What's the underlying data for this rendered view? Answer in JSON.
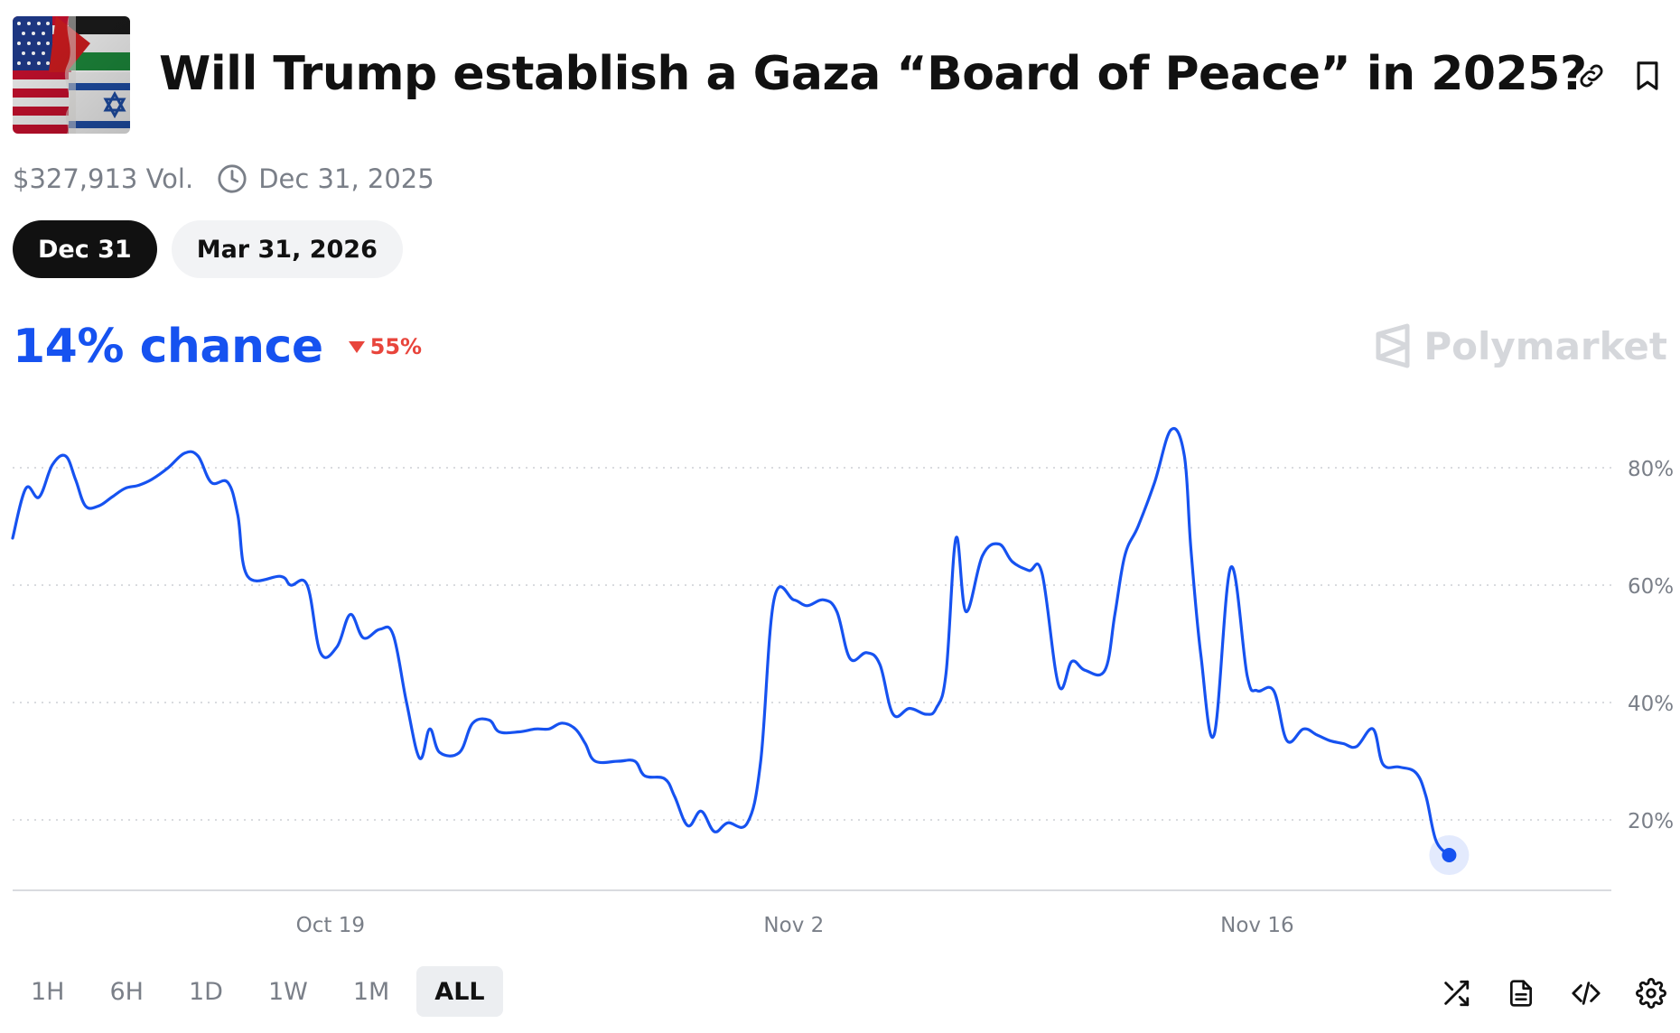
{
  "market": {
    "title": "Will Trump establish a Gaza “Board of Peace” in 2025?",
    "volume": "$327,913 Vol.",
    "end_date": "Dec 31, 2025"
  },
  "outcome_tabs": [
    {
      "label": "Dec 31",
      "active": true
    },
    {
      "label": "Mar 31, 2026",
      "active": false
    }
  ],
  "summary": {
    "chance": "14% chance",
    "change": "55%",
    "change_direction": "down"
  },
  "brand": {
    "name": "Polymarket"
  },
  "colors": {
    "accent": "#1652f0",
    "negative": "#e8453c",
    "grid": "#d9dbdf",
    "axis_text": "#7a7f88"
  },
  "header_icons": [
    "link-icon",
    "bookmark-icon"
  ],
  "time_ranges": [
    {
      "label": "1H",
      "active": false
    },
    {
      "label": "6H",
      "active": false
    },
    {
      "label": "1D",
      "active": false
    },
    {
      "label": "1W",
      "active": false
    },
    {
      "label": "1M",
      "active": false
    },
    {
      "label": "ALL",
      "active": true
    }
  ],
  "toolbar_icons": [
    "shuffle-icon",
    "document-icon",
    "code-icon",
    "settings-icon"
  ],
  "chart_data": {
    "type": "line",
    "xlabel": "",
    "ylabel": "",
    "ylim": [
      8,
      92
    ],
    "y_ticks": [
      20,
      40,
      60,
      80
    ],
    "y_tick_labels": [
      "20%",
      "40%",
      "60%",
      "80%"
    ],
    "x_ticks": [
      {
        "x": 19.0,
        "label": "Oct 19"
      },
      {
        "x": 33.0,
        "label": "Nov 2"
      },
      {
        "x": 47.0,
        "label": "Nov 16"
      }
    ],
    "x_range": [
      9.4,
      57.7
    ],
    "grid": true,
    "legend": "none",
    "series": [
      {
        "color": "#1652f0",
        "points": [
          [
            9.4,
            68
          ],
          [
            9.8,
            76.5
          ],
          [
            10.2,
            75
          ],
          [
            10.6,
            80.5
          ],
          [
            11.0,
            82
          ],
          [
            11.3,
            78
          ],
          [
            11.6,
            73.5
          ],
          [
            12.0,
            73.5
          ],
          [
            12.4,
            75
          ],
          [
            12.8,
            76.5
          ],
          [
            13.2,
            77
          ],
          [
            13.6,
            78
          ],
          [
            14.1,
            80
          ],
          [
            14.6,
            82.5
          ],
          [
            15.0,
            82
          ],
          [
            15.4,
            77.5
          ],
          [
            15.9,
            77.5
          ],
          [
            16.2,
            72
          ],
          [
            16.5,
            61.5
          ],
          [
            17.5,
            61.5
          ],
          [
            17.8,
            60
          ],
          [
            18.3,
            60
          ],
          [
            18.7,
            48.5
          ],
          [
            19.2,
            49.5
          ],
          [
            19.6,
            55
          ],
          [
            20.0,
            51
          ],
          [
            20.5,
            52.5
          ],
          [
            20.9,
            51.5
          ],
          [
            21.3,
            40
          ],
          [
            21.7,
            30.5
          ],
          [
            22.0,
            35.5
          ],
          [
            22.3,
            31.5
          ],
          [
            22.9,
            31.5
          ],
          [
            23.3,
            36.5
          ],
          [
            23.8,
            37
          ],
          [
            24.1,
            35
          ],
          [
            24.7,
            35
          ],
          [
            25.2,
            35.5
          ],
          [
            25.6,
            35.5
          ],
          [
            26.0,
            36.5
          ],
          [
            26.4,
            35.5
          ],
          [
            26.7,
            33
          ],
          [
            27.0,
            30
          ],
          [
            27.7,
            30
          ],
          [
            28.2,
            30
          ],
          [
            28.5,
            27.5
          ],
          [
            29.1,
            27
          ],
          [
            29.4,
            24
          ],
          [
            29.8,
            19
          ],
          [
            30.2,
            21.5
          ],
          [
            30.6,
            18
          ],
          [
            31.0,
            19.5
          ],
          [
            31.6,
            19.5
          ],
          [
            32.0,
            30
          ],
          [
            32.4,
            57.5
          ],
          [
            33.0,
            57.5
          ],
          [
            33.4,
            56.5
          ],
          [
            33.9,
            57.5
          ],
          [
            34.3,
            55.5
          ],
          [
            34.7,
            47.5
          ],
          [
            35.2,
            48.5
          ],
          [
            35.6,
            46.5
          ],
          [
            36.0,
            38
          ],
          [
            36.5,
            39
          ],
          [
            37.0,
            38
          ],
          [
            37.3,
            39
          ],
          [
            37.6,
            45
          ],
          [
            37.9,
            68
          ],
          [
            38.2,
            55.5
          ],
          [
            38.7,
            65
          ],
          [
            39.2,
            67
          ],
          [
            39.6,
            64
          ],
          [
            40.1,
            62.5
          ],
          [
            40.5,
            62
          ],
          [
            41.0,
            43
          ],
          [
            41.4,
            47
          ],
          [
            41.8,
            45.5
          ],
          [
            42.4,
            45.5
          ],
          [
            42.7,
            55
          ],
          [
            43.0,
            65
          ],
          [
            43.4,
            70
          ],
          [
            43.9,
            77.5
          ],
          [
            44.4,
            86.5
          ],
          [
            44.8,
            82
          ],
          [
            45.0,
            66
          ],
          [
            45.3,
            48
          ],
          [
            45.7,
            34.5
          ],
          [
            46.2,
            63
          ],
          [
            46.7,
            44.5
          ],
          [
            47.0,
            42
          ],
          [
            47.5,
            42
          ],
          [
            47.9,
            33.5
          ],
          [
            48.4,
            35.5
          ],
          [
            48.8,
            34.5
          ],
          [
            49.2,
            33.5
          ],
          [
            49.6,
            33
          ],
          [
            50.0,
            32.5
          ],
          [
            50.5,
            35.5
          ],
          [
            50.8,
            29.5
          ],
          [
            51.3,
            29
          ],
          [
            51.8,
            28
          ],
          [
            52.1,
            24
          ],
          [
            52.4,
            16.5
          ],
          [
            52.8,
            14
          ]
        ],
        "last_value": 14
      }
    ]
  }
}
